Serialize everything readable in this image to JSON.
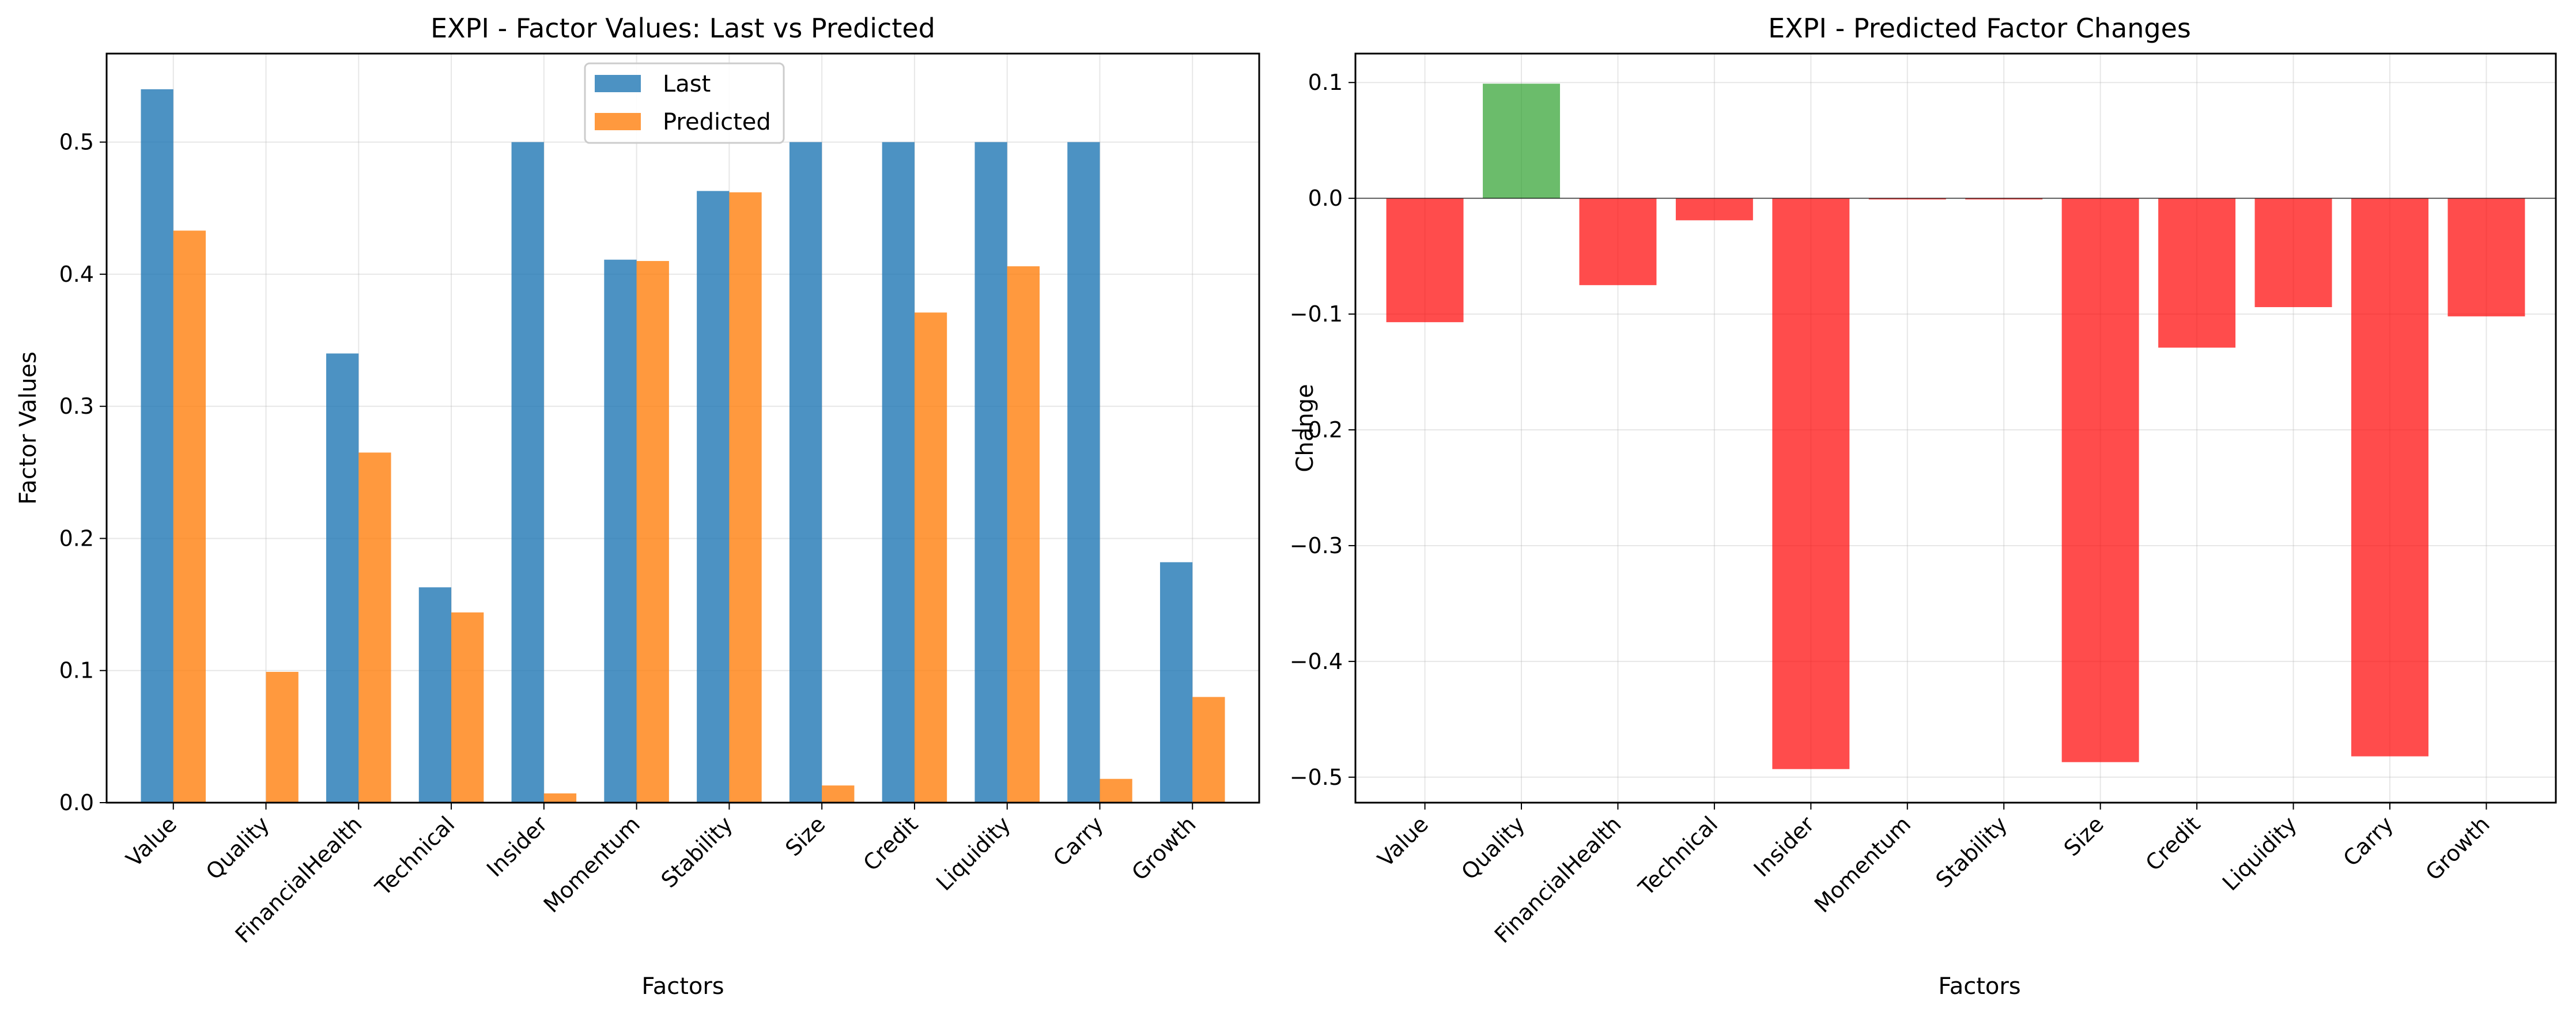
{
  "chart_data": [
    {
      "type": "bar",
      "title": "EXPI - Factor Values: Last vs Predicted",
      "xlabel": "Factors",
      "ylabel": "Factor Values",
      "categories": [
        "Value",
        "Quality",
        "FinancialHealth",
        "Technical",
        "Insider",
        "Momentum",
        "Stability",
        "Size",
        "Credit",
        "Liquidity",
        "Carry",
        "Growth"
      ],
      "series": [
        {
          "name": "Last",
          "color": "#1f77b4",
          "values": [
            0.54,
            0.0,
            0.34,
            0.163,
            0.5,
            0.411,
            0.463,
            0.5,
            0.5,
            0.5,
            0.5,
            0.182
          ]
        },
        {
          "name": "Predicted",
          "color": "#ff7f0e",
          "values": [
            0.433,
            0.099,
            0.265,
            0.144,
            0.007,
            0.41,
            0.462,
            0.013,
            0.371,
            0.406,
            0.018,
            0.08
          ]
        }
      ],
      "ylim": [
        0,
        0.567
      ],
      "yticks": [
        "0.0",
        "0.1",
        "0.2",
        "0.3",
        "0.4",
        "0.5"
      ],
      "ytick_values": [
        0,
        0.1,
        0.2,
        0.3,
        0.4,
        0.5
      ],
      "grid": true,
      "legend": "top-center"
    },
    {
      "type": "bar",
      "title": "EXPI - Predicted Factor Changes",
      "xlabel": "Factors",
      "ylabel": "Change",
      "categories": [
        "Value",
        "Quality",
        "FinancialHealth",
        "Technical",
        "Insider",
        "Momentum",
        "Stability",
        "Size",
        "Credit",
        "Liquidity",
        "Carry",
        "Growth"
      ],
      "values": [
        -0.107,
        0.099,
        -0.075,
        -0.019,
        -0.493,
        -0.001,
        -0.001,
        -0.487,
        -0.129,
        -0.094,
        -0.482,
        -0.102
      ],
      "positive_color": "#2ca02c",
      "negative_color": "#ff0000",
      "ylim": [
        -0.522,
        0.125
      ],
      "yticks": [
        "0.1",
        "0.0",
        "−0.1",
        "−0.2",
        "−0.3",
        "−0.4",
        "−0.5"
      ],
      "ytick_values": [
        0.1,
        0.0,
        -0.1,
        -0.2,
        -0.3,
        -0.4,
        -0.5
      ],
      "grid": true
    }
  ]
}
